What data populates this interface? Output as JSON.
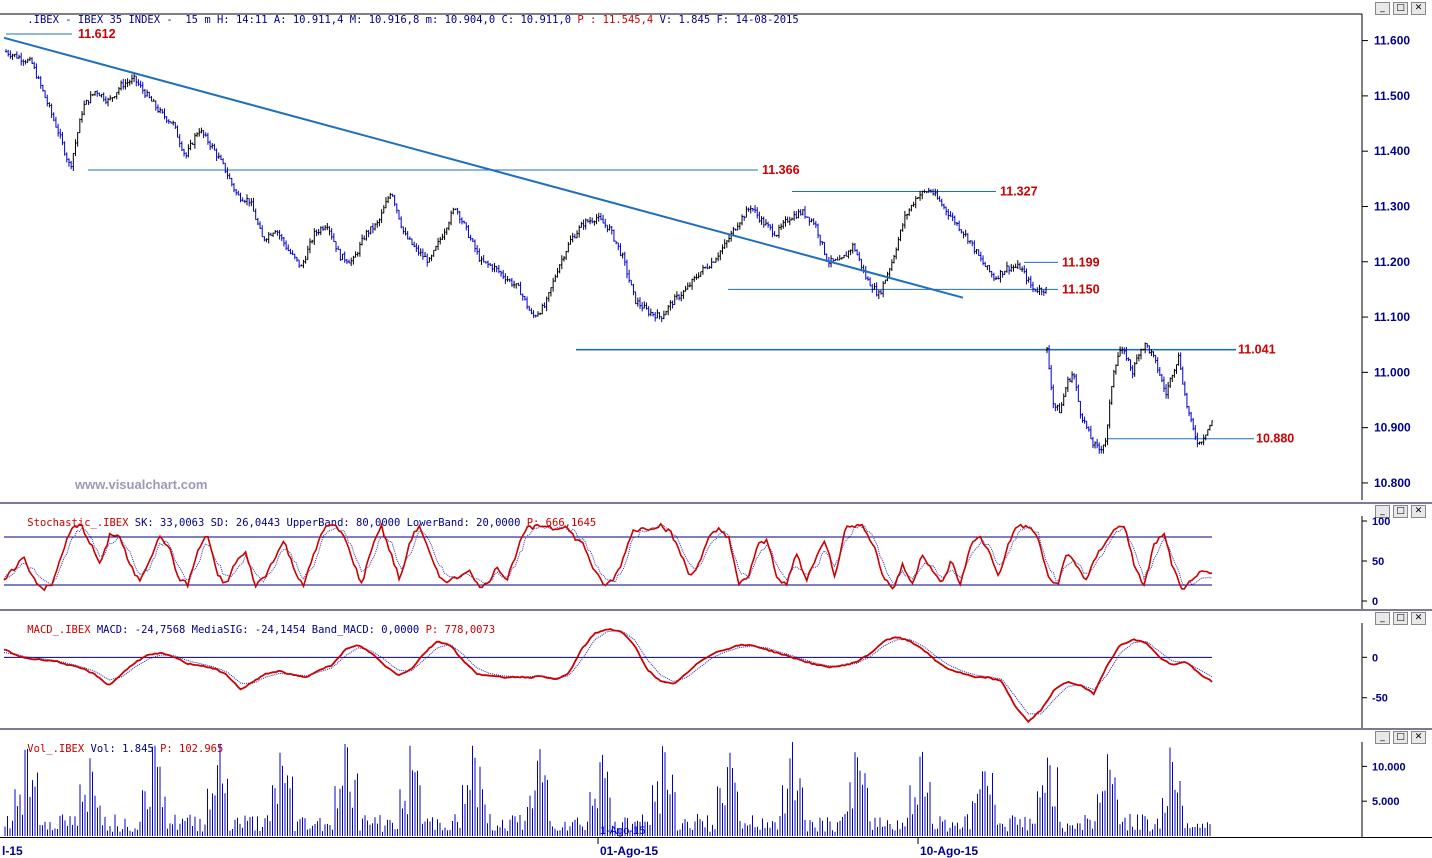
{
  "price_header": {
    "symbol": ".IBEX - IBEX 35 INDEX -",
    "timeframe": "15 m",
    "H": "H: 14:11",
    "A": "A: 10.911,4",
    "M": "M: 10.916,8",
    "m": "m: 10.904,0",
    "C": "C: 10.911,0",
    "P": "P : 11.545,4",
    "V": "V: 1.845",
    "F": "F: 14-08-2015"
  },
  "stoch_header": {
    "name": "Stochastic_.IBEX",
    "text": " SK: 33,0063 SD: 26,0443 UpperBand: 80,0000 LowerBand: 20,0000 ",
    "p": "P: 666,1645"
  },
  "macd_header": {
    "name": "MACD_.IBEX",
    "text": " MACD: -24,7568 MediaSIG: -24,1454 Band_MACD: 0,0000 ",
    "p": "P: 778,0073"
  },
  "vol_header": {
    "name": "Vol_.IBEX",
    "text": " Vol: 1.845 ",
    "p": "P: 102.965"
  },
  "watermark": "www.visualchart.com",
  "xaxis": {
    "labels": [
      "l-15",
      "01-Ago-15",
      "10-Ago-15"
    ],
    "overlay": "1-Ago-15"
  },
  "window_buttons": [
    "_",
    "□",
    "✕"
  ],
  "colors": {
    "up": "#000000",
    "down": "#0000cc",
    "trendline": "#1f6fbf",
    "level_label": "#cc0000",
    "stoch": "#cc0000",
    "volume": "#0000cc",
    "axis": "#00008b"
  },
  "chart_data": [
    {
      "type": "line",
      "series_kind": "candlestick-15m",
      "y_ticks": [
        "11.600",
        "11.500",
        "11.400",
        "11.300",
        "11.200",
        "11.100",
        "11.000",
        "10.900",
        "10.800"
      ],
      "ylim": [
        10.78,
        11.63
      ],
      "levels": [
        {
          "label": "11.612",
          "value": 11.612
        },
        {
          "label": "11.366",
          "value": 11.366
        },
        {
          "label": "11.327",
          "value": 11.327
        },
        {
          "label": "11.199",
          "value": 11.199
        },
        {
          "label": "11.150",
          "value": 11.15
        },
        {
          "label": "11.041",
          "value": 11.041
        },
        {
          "label": "10.880",
          "value": 10.88
        }
      ],
      "trendline": {
        "from": 11.605,
        "to": 11.135
      },
      "path": [
        11.58,
        11.57,
        11.56,
        11.5,
        11.44,
        11.37,
        11.48,
        11.51,
        11.49,
        11.52,
        11.53,
        11.5,
        11.47,
        11.45,
        11.39,
        11.44,
        11.41,
        11.37,
        11.32,
        11.31,
        11.24,
        11.26,
        11.22,
        11.19,
        11.25,
        11.27,
        11.21,
        11.2,
        11.25,
        11.27,
        11.33,
        11.25,
        11.22,
        11.2,
        11.25,
        11.3,
        11.25,
        11.2,
        11.19,
        11.17,
        11.15,
        11.1,
        11.12,
        11.19,
        11.24,
        11.27,
        11.28,
        11.26,
        11.21,
        11.13,
        11.11,
        11.1,
        11.13,
        11.15,
        11.18,
        11.2,
        11.23,
        11.27,
        11.3,
        11.27,
        11.25,
        11.28,
        11.29,
        11.27,
        11.2,
        11.2,
        11.23,
        11.17,
        11.14,
        11.2,
        11.28,
        11.32,
        11.33,
        11.3,
        11.27,
        11.24,
        11.2,
        11.17,
        11.19,
        11.19,
        11.15,
        11.15
      ],
      "path2": [
        11.04,
        10.94,
        10.93,
        10.98,
        11.0,
        10.93,
        10.9,
        10.87,
        10.86,
        10.88,
        11.0,
        11.04,
        11.03,
        11.0,
        11.04,
        11.05,
        11.03,
        11.0,
        10.96,
        11.0,
        11.03,
        10.95,
        10.9,
        10.87,
        10.89,
        10.91
      ]
    },
    {
      "type": "line",
      "series_kind": "stochastic",
      "y_ticks": [
        "100",
        "50",
        "0"
      ],
      "ylim": [
        0,
        100
      ],
      "bands": [
        80,
        20
      ],
      "sk": [
        25,
        40,
        55,
        30,
        15,
        20,
        60,
        90,
        95,
        70,
        45,
        85,
        80,
        45,
        25,
        50,
        80,
        70,
        30,
        20,
        60,
        85,
        35,
        20,
        50,
        60,
        20,
        30,
        55,
        75,
        40,
        20,
        55,
        90,
        95,
        85,
        55,
        20,
        65,
        95,
        60,
        25,
        75,
        95,
        60,
        30,
        25,
        30,
        40,
        20,
        20,
        45,
        25,
        60,
        90,
        92,
        95,
        90,
        95,
        80,
        70,
        40,
        20,
        25,
        50,
        88,
        90,
        92,
        95,
        85,
        60,
        30,
        50,
        80,
        90,
        80,
        20,
        30,
        70,
        75,
        30,
        20,
        60,
        25,
        55,
        75,
        30,
        90,
        95,
        92,
        70,
        30,
        15,
        45,
        20,
        60,
        40,
        20,
        50,
        20,
        70,
        80,
        60,
        30,
        75,
        95,
        92,
        80,
        30,
        20,
        60,
        45,
        25,
        55,
        75,
        90,
        95,
        40,
        20,
        70,
        85,
        40,
        10,
        30,
        35,
        33
      ],
      "sd": [
        28,
        35,
        48,
        40,
        25,
        18,
        45,
        78,
        92,
        80,
        55,
        70,
        82,
        60,
        35,
        40,
        68,
        75,
        45,
        25,
        45,
        75,
        50,
        28,
        38,
        55,
        35,
        25,
        45,
        68,
        52,
        28,
        42,
        78,
        92,
        90,
        68,
        35,
        48,
        82,
        75,
        40,
        58,
        88,
        75,
        45,
        30,
        28,
        35,
        25,
        22,
        35,
        30,
        45,
        78,
        90,
        93,
        92,
        93,
        86,
        75,
        52,
        30,
        22,
        38,
        75,
        88,
        91,
        93,
        89,
        72,
        42,
        42,
        68,
        85,
        84,
        40,
        28,
        55,
        72,
        45,
        25,
        45,
        32,
        42,
        65,
        42,
        72,
        90,
        93,
        80,
        45,
        22,
        35,
        28,
        45,
        45,
        28,
        40,
        28,
        55,
        75,
        68,
        42,
        60,
        88,
        93,
        85,
        45,
        25,
        45,
        50,
        32,
        45,
        65,
        85,
        92,
        60,
        30,
        50,
        78,
        55,
        22,
        22,
        30,
        26
      ]
    },
    {
      "type": "line",
      "series_kind": "macd",
      "y_ticks": [
        "0",
        "-50"
      ],
      "ylim": [
        -85,
        40
      ],
      "macd": [
        10,
        2,
        -2,
        -3,
        -5,
        -10,
        -14,
        -22,
        -35,
        -20,
        -6,
        3,
        5,
        0,
        -8,
        -10,
        -14,
        -22,
        -40,
        -30,
        -20,
        -17,
        -22,
        -25,
        -15,
        -10,
        10,
        15,
        5,
        -10,
        -22,
        -15,
        5,
        20,
        15,
        -5,
        -20,
        -23,
        -25,
        -24,
        -25,
        -23,
        -28,
        -20,
        10,
        30,
        35,
        32,
        15,
        -15,
        -30,
        -33,
        -20,
        -5,
        5,
        10,
        15,
        15,
        10,
        5,
        0,
        -5,
        -10,
        -12,
        -10,
        -5,
        5,
        20,
        25,
        20,
        10,
        -5,
        -15,
        -20,
        -25,
        -25,
        -30,
        -60,
        -80,
        -65,
        -40,
        -30,
        -35,
        -45,
        -10,
        15,
        22,
        18,
        0,
        -10,
        -5,
        -20,
        -30
      ],
      "signal": [
        6,
        3,
        0,
        -2,
        -4,
        -8,
        -12,
        -18,
        -28,
        -24,
        -12,
        -2,
        3,
        2,
        -4,
        -8,
        -12,
        -18,
        -32,
        -32,
        -24,
        -20,
        -21,
        -23,
        -18,
        -13,
        2,
        12,
        8,
        -3,
        -16,
        -17,
        -3,
        12,
        16,
        3,
        -13,
        -20,
        -23,
        -24,
        -24,
        -23,
        -26,
        -23,
        -3,
        22,
        32,
        33,
        22,
        -3,
        -22,
        -30,
        -25,
        -12,
        0,
        7,
        12,
        14,
        12,
        7,
        2,
        -3,
        -8,
        -11,
        -10,
        -7,
        1,
        14,
        22,
        22,
        14,
        1,
        -10,
        -17,
        -22,
        -24,
        -27,
        -48,
        -70,
        -70,
        -52,
        -36,
        -34,
        -40,
        -22,
        5,
        18,
        20,
        7,
        -5,
        -6,
        -15,
        -24
      ]
    },
    {
      "type": "bar",
      "series_kind": "volume",
      "y_ticks": [
        "10.000",
        "5.000"
      ],
      "ylim": [
        0,
        13500
      ]
    }
  ]
}
